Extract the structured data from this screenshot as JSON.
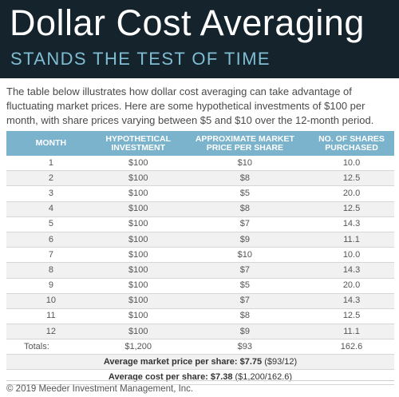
{
  "header": {
    "title": "Dollar Cost Averaging",
    "subtitle": "STANDS THE TEST OF TIME"
  },
  "intro": "The table below illustrates how dollar cost averaging can take advantage of fluctuating market prices. Here are some hypothetical investments of $100 per month, with share prices varying between $5 and $10 over the 12-month period.",
  "table": {
    "columns": [
      "MONTH",
      "HYPOTHETICAL INVESTMENT",
      "APPROXIMATE MARKET PRICE PER SHARE",
      "NO. OF SHARES PURCHASED"
    ],
    "rows": [
      [
        "1",
        "$100",
        "$10",
        "10.0"
      ],
      [
        "2",
        "$100",
        "$8",
        "12.5"
      ],
      [
        "3",
        "$100",
        "$5",
        "20.0"
      ],
      [
        "4",
        "$100",
        "$8",
        "12.5"
      ],
      [
        "5",
        "$100",
        "$7",
        "14.3"
      ],
      [
        "6",
        "$100",
        "$9",
        "11.1"
      ],
      [
        "7",
        "$100",
        "$10",
        "10.0"
      ],
      [
        "8",
        "$100",
        "$7",
        "14.3"
      ],
      [
        "9",
        "$100",
        "$5",
        "20.0"
      ],
      [
        "10",
        "$100",
        "$7",
        "14.3"
      ],
      [
        "11",
        "$100",
        "$8",
        "12.5"
      ],
      [
        "12",
        "$100",
        "$9",
        "11.1"
      ]
    ],
    "totals": [
      "Totals:",
      "$1,200",
      "$93",
      "162.6"
    ],
    "summary": [
      {
        "label": "Average market price per share: $7.75",
        "detail": "($93/12)"
      },
      {
        "label": "Average cost per share: $7.38",
        "detail": "($1,200/162.6)"
      }
    ]
  },
  "footer": "© 2019 Meeder Investment Management, Inc."
}
